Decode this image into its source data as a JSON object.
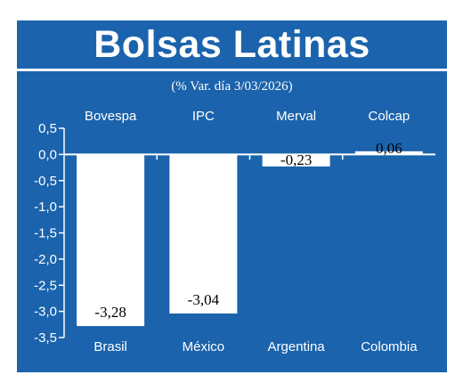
{
  "chart_data": {
    "type": "bar",
    "title": "Bolsas Latinas",
    "subtitle": "(% Var. día 3/03/2026)",
    "categories": [
      "Brasil",
      "México",
      "Argentina",
      "Colombia"
    ],
    "index_names": [
      "Bovespa",
      "IPC",
      "Merval",
      "Colcap"
    ],
    "values": [
      -3.28,
      -3.04,
      -0.23,
      0.06
    ],
    "value_labels": [
      "-3,28",
      "-3,04",
      "-0,23",
      "0,06"
    ],
    "yticks": [
      "0,5",
      "0,0",
      "-0,5",
      "-1,0",
      "-1,5",
      "-2,0",
      "-2,5",
      "-3,0",
      "-3,5"
    ],
    "ytick_values": [
      0.5,
      0.0,
      -0.5,
      -1.0,
      -1.5,
      -2.0,
      -2.5,
      -3.0,
      -3.5
    ],
    "ylim": [
      -3.5,
      0.5
    ],
    "xlabel": "",
    "ylabel": "",
    "grid": false,
    "colors": {
      "background": "#1b63ac",
      "bars": "#ffffff",
      "text": "#ffffff",
      "value_text": "#000000"
    }
  }
}
